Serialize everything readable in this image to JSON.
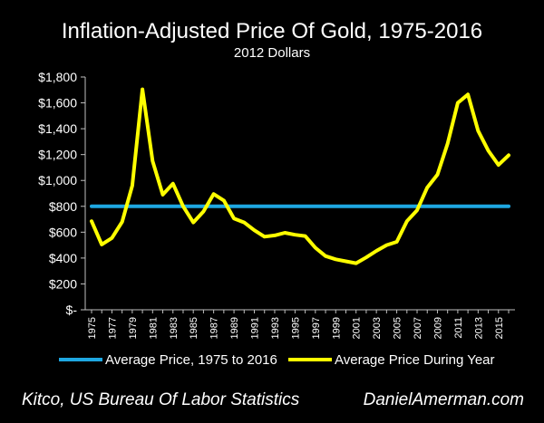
{
  "chart_data": {
    "type": "line",
    "title": "Inflation-Adjusted Price Of Gold, 1975-2016",
    "subtitle": "2012 Dollars",
    "xlabel": "",
    "ylabel": "",
    "ylim": [
      0,
      1800
    ],
    "y_ticks": [
      0,
      200,
      400,
      600,
      800,
      1000,
      1200,
      1400,
      1600,
      1800
    ],
    "y_tick_labels": [
      "$-",
      "$200",
      "$400",
      "$600",
      "$800",
      "$1,000",
      "$1,200",
      "$1,400",
      "$1,600",
      "$1,800"
    ],
    "x_tick_labels": [
      "1975",
      "1977",
      "1979",
      "1981",
      "1983",
      "1985",
      "1987",
      "1989",
      "1991",
      "1993",
      "1995",
      "1997",
      "1999",
      "2001",
      "2003",
      "2005",
      "2007",
      "2009",
      "2011",
      "2013",
      "2015"
    ],
    "x": [
      1975,
      1976,
      1977,
      1978,
      1979,
      1980,
      1981,
      1982,
      1983,
      1984,
      1985,
      1986,
      1987,
      1988,
      1989,
      1990,
      1991,
      1992,
      1993,
      1994,
      1995,
      1996,
      1997,
      1998,
      1999,
      2000,
      2001,
      2002,
      2003,
      2004,
      2005,
      2006,
      2007,
      2008,
      2009,
      2010,
      2011,
      2012,
      2013,
      2014,
      2015,
      2016
    ],
    "grid": false,
    "legend_position": "bottom",
    "series": [
      {
        "name": "Average Price, 1975 to 2016",
        "color": "#1ea7e1",
        "values": [
          800,
          800,
          800,
          800,
          800,
          800,
          800,
          800,
          800,
          800,
          800,
          800,
          800,
          800,
          800,
          800,
          800,
          800,
          800,
          800,
          800,
          800,
          800,
          800,
          800,
          800,
          800,
          800,
          800,
          800,
          800,
          800,
          800,
          800,
          800,
          800,
          800,
          800,
          800,
          800,
          800,
          800
        ]
      },
      {
        "name": "Average Price During Year",
        "color": "#ffff00",
        "values": [
          685,
          505,
          555,
          680,
          960,
          1705,
          1150,
          890,
          975,
          800,
          675,
          760,
          895,
          845,
          705,
          675,
          615,
          565,
          575,
          595,
          580,
          570,
          480,
          415,
          390,
          375,
          360,
          405,
          455,
          500,
          525,
          685,
          770,
          945,
          1045,
          1285,
          1600,
          1665,
          1385,
          1230,
          1120,
          1195
        ]
      }
    ]
  },
  "footer": {
    "source": "Kitco, US Bureau Of Labor Statistics",
    "site": "DanielAmerman.com"
  }
}
